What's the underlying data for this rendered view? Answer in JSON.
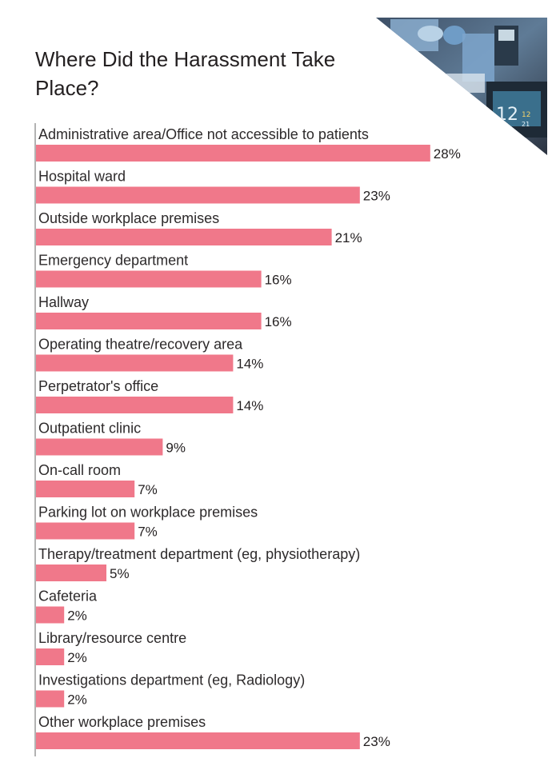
{
  "colors": {
    "bar": "#f0788a",
    "axis": "#9a9a9a",
    "text": "#231f20"
  },
  "chart_data": {
    "type": "bar",
    "orientation": "horizontal",
    "title": "Where Did the Harassment Take Place?",
    "categories": [
      "Administrative area/Office not accessible to patients",
      "Hospital ward",
      "Outside workplace premises",
      "Emergency department",
      "Hallway",
      "Operating theatre/recovery area",
      "Perpetrator's office",
      "Outpatient clinic",
      "On-call room",
      "Parking lot on workplace premises",
      "Therapy/treatment department (eg, physiotherapy)",
      "Cafeteria",
      "Library/resource centre",
      "Investigations department (eg, Radiology)",
      "Other workplace premises"
    ],
    "values": [
      28,
      23,
      21,
      16,
      16,
      14,
      14,
      9,
      7,
      7,
      5,
      2,
      2,
      2,
      23
    ],
    "value_labels": [
      "28%",
      "23%",
      "21%",
      "16%",
      "16%",
      "14%",
      "14%",
      "9%",
      "7%",
      "7%",
      "5%",
      "2%",
      "2%",
      "2%",
      "23%"
    ],
    "unit": "%",
    "grid": false,
    "legend": "none"
  }
}
